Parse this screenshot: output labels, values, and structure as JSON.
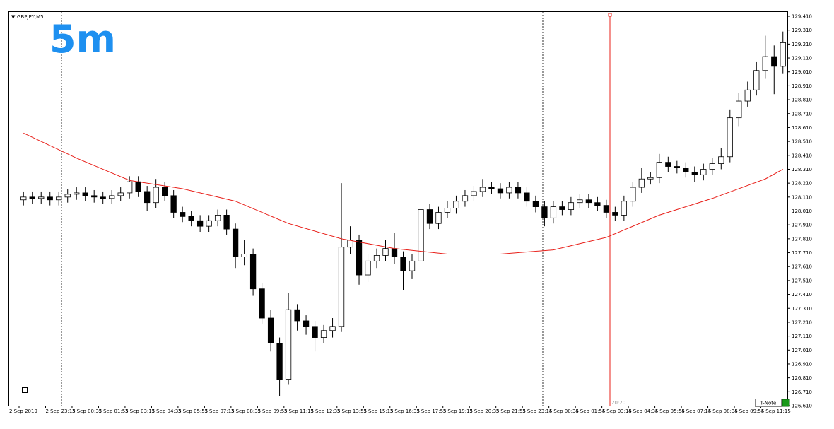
{
  "chart_data": {
    "type": "candlestick",
    "title": "GBPJPY,M5",
    "annotation": "5m",
    "cursor_label": "20:20",
    "up_color": "#ffffff",
    "down_color": "#000000",
    "edge_color": "#000000",
    "ylim": [
      126.61,
      129.41
    ],
    "yticks": [
      {
        "value": 126.61,
        "label": "126.610"
      },
      {
        "value": 126.71,
        "label": "126.710"
      },
      {
        "value": 126.81,
        "label": "126.810"
      },
      {
        "value": 126.91,
        "label": "126.910"
      },
      {
        "value": 127.01,
        "label": "127.010"
      },
      {
        "value": 127.11,
        "label": "127.110"
      },
      {
        "value": 127.21,
        "label": "127.210"
      },
      {
        "value": 127.31,
        "label": "127.310"
      },
      {
        "value": 127.41,
        "label": "127.410"
      },
      {
        "value": 127.51,
        "label": "127.510"
      },
      {
        "value": 127.61,
        "label": "127.610"
      },
      {
        "value": 127.71,
        "label": "127.710"
      },
      {
        "value": 127.81,
        "label": "127.810"
      },
      {
        "value": 127.91,
        "label": "127.910"
      },
      {
        "value": 128.01,
        "label": "128.010"
      },
      {
        "value": 128.11,
        "label": "128.110"
      },
      {
        "value": 128.21,
        "label": "128.210"
      },
      {
        "value": 128.31,
        "label": "128.310"
      },
      {
        "value": 128.41,
        "label": "128.410"
      },
      {
        "value": 128.51,
        "label": "128.510"
      },
      {
        "value": 128.61,
        "label": "128.610"
      },
      {
        "value": 128.71,
        "label": "128.710"
      },
      {
        "value": 128.81,
        "label": "128.810"
      },
      {
        "value": 128.91,
        "label": "128.910"
      },
      {
        "value": 129.01,
        "label": "129.010"
      },
      {
        "value": 129.11,
        "label": "129.110"
      },
      {
        "value": 129.21,
        "label": "129.210"
      },
      {
        "value": 129.31,
        "label": "129.310"
      },
      {
        "value": 129.41,
        "label": "129.410"
      }
    ],
    "categories": [
      "2 Sep 2019",
      null,
      null,
      "2 Sep 23:15",
      null,
      null,
      "3 Sep 00:35",
      null,
      null,
      "3 Sep 01:55",
      null,
      null,
      "3 Sep 03:15",
      null,
      null,
      "3 Sep 04:35",
      null,
      null,
      "3 Sep 05:55",
      null,
      null,
      "3 Sep 07:15",
      null,
      null,
      "3 Sep 08:35",
      null,
      null,
      "3 Sep 09:55",
      null,
      null,
      "3 Sep 11:15",
      null,
      null,
      "3 Sep 12:35",
      null,
      null,
      "3 Sep 13:55",
      null,
      null,
      "3 Sep 15:15",
      null,
      null,
      "3 Sep 16:35",
      null,
      null,
      "3 Sep 17:55",
      null,
      null,
      "3 Sep 19:15",
      null,
      null,
      "3 Sep 20:35",
      null,
      null,
      "3 Sep 21:55",
      null,
      null,
      "3 Sep 23:15",
      null,
      null,
      "4 Sep 00:35",
      null,
      null,
      "4 Sep 01:55",
      null,
      null,
      "4 Sep 03:15",
      null,
      null,
      "4 Sep 04:35",
      null,
      null,
      "4 Sep 05:55",
      null,
      null,
      "4 Sep 07:15",
      null,
      null,
      "4 Sep 08:35",
      null,
      null,
      "4 Sep 09:55",
      null,
      null,
      "4 Sep 11:15",
      null,
      null
    ],
    "open": [
      128.09,
      128.11,
      128.1,
      128.11,
      128.09,
      128.11,
      128.13,
      128.14,
      128.12,
      128.11,
      128.1,
      128.12,
      128.14,
      128.22,
      128.15,
      128.07,
      128.18,
      128.12,
      128.0,
      127.97,
      127.94,
      127.9,
      127.94,
      127.98,
      127.88,
      127.68,
      127.7,
      127.45,
      127.24,
      127.06,
      126.8,
      127.3,
      127.22,
      127.18,
      127.1,
      127.15,
      127.18,
      127.75,
      127.8,
      127.55,
      127.65,
      127.69,
      127.74,
      127.68,
      127.58,
      127.65,
      128.02,
      127.92,
      128.0,
      128.03,
      128.08,
      128.12,
      128.15,
      128.18,
      128.17,
      128.14,
      128.18,
      128.14,
      128.08,
      128.04,
      127.96,
      128.04,
      128.02,
      128.07,
      128.09,
      128.07,
      128.05,
      128.0,
      127.98,
      128.08,
      128.18,
      128.24,
      128.25,
      128.36,
      128.33,
      128.32,
      128.29,
      128.27,
      128.31,
      128.35,
      128.4,
      128.68,
      128.8,
      128.88,
      129.02,
      129.12,
      129.05
    ],
    "high": [
      128.15,
      128.15,
      128.15,
      128.15,
      128.15,
      128.17,
      128.18,
      128.18,
      128.16,
      128.15,
      128.16,
      128.18,
      128.26,
      128.26,
      128.19,
      128.24,
      128.22,
      128.16,
      128.04,
      128.01,
      127.98,
      127.98,
      128.02,
      128.02,
      127.92,
      127.8,
      127.74,
      127.49,
      127.3,
      127.1,
      127.42,
      127.34,
      127.26,
      127.22,
      127.19,
      127.24,
      128.21,
      127.9,
      127.84,
      127.7,
      127.74,
      127.8,
      127.85,
      127.72,
      127.7,
      128.17,
      128.06,
      128.04,
      128.08,
      128.12,
      128.16,
      128.19,
      128.24,
      128.22,
      128.21,
      128.22,
      128.22,
      128.18,
      128.12,
      128.08,
      128.08,
      128.08,
      128.11,
      128.13,
      128.13,
      128.11,
      128.09,
      128.04,
      128.12,
      128.22,
      128.32,
      128.29,
      128.42,
      128.4,
      128.37,
      128.36,
      128.33,
      128.35,
      128.39,
      128.46,
      128.74,
      128.86,
      128.94,
      129.08,
      129.27,
      129.2,
      129.3
    ],
    "low": [
      128.05,
      128.06,
      128.06,
      128.05,
      128.05,
      128.07,
      128.09,
      128.08,
      128.07,
      128.06,
      128.06,
      128.08,
      128.1,
      128.11,
      128.01,
      128.03,
      128.08,
      127.96,
      127.93,
      127.9,
      127.86,
      127.86,
      127.9,
      127.84,
      127.6,
      127.62,
      127.4,
      127.2,
      127.0,
      126.68,
      126.76,
      127.15,
      127.12,
      127.0,
      127.06,
      127.1,
      127.14,
      127.7,
      127.48,
      127.5,
      127.6,
      127.65,
      127.63,
      127.44,
      127.52,
      127.61,
      127.88,
      127.88,
      127.96,
      127.99,
      128.04,
      128.08,
      128.11,
      128.13,
      128.1,
      128.1,
      128.1,
      128.04,
      128.0,
      127.9,
      127.92,
      127.98,
      127.98,
      128.03,
      128.03,
      128.01,
      127.96,
      127.94,
      127.94,
      128.04,
      128.14,
      128.2,
      128.21,
      128.29,
      128.28,
      128.25,
      128.22,
      128.23,
      128.27,
      128.31,
      128.36,
      128.62,
      128.76,
      128.84,
      128.96,
      128.85,
      129.0
    ],
    "close": [
      128.11,
      128.1,
      128.11,
      128.09,
      128.11,
      128.13,
      128.14,
      128.12,
      128.11,
      128.1,
      128.12,
      128.14,
      128.22,
      128.15,
      128.07,
      128.18,
      128.12,
      128.0,
      127.97,
      127.94,
      127.9,
      127.94,
      127.98,
      127.88,
      127.68,
      127.7,
      127.45,
      127.24,
      127.06,
      126.8,
      127.3,
      127.22,
      127.18,
      127.1,
      127.15,
      127.18,
      127.75,
      127.8,
      127.55,
      127.65,
      127.69,
      127.74,
      127.68,
      127.58,
      127.65,
      128.02,
      127.92,
      128.0,
      128.03,
      128.08,
      128.12,
      128.15,
      128.18,
      128.17,
      128.14,
      128.18,
      128.14,
      128.08,
      128.04,
      127.96,
      128.04,
      128.02,
      128.07,
      128.09,
      128.07,
      128.05,
      128.0,
      127.98,
      128.08,
      128.18,
      128.24,
      128.25,
      128.36,
      128.33,
      128.32,
      128.29,
      128.27,
      128.31,
      128.35,
      128.4,
      128.68,
      128.8,
      128.88,
      129.02,
      129.12,
      129.05,
      129.22
    ],
    "ma": {
      "color": "#e8201a",
      "x": [
        0,
        6,
        12,
        18,
        24,
        30,
        36,
        42,
        48,
        54,
        60,
        66,
        72,
        78,
        84,
        86
      ],
      "values": [
        128.57,
        128.39,
        128.23,
        128.17,
        128.08,
        127.92,
        127.81,
        127.74,
        127.7,
        127.7,
        127.73,
        127.82,
        127.98,
        128.1,
        128.24,
        128.31
      ]
    }
  },
  "toolbar": {
    "button": "T-Note"
  }
}
